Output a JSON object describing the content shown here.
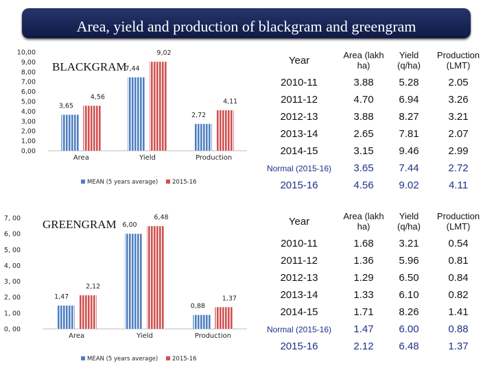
{
  "title": "Area, yield and production of blackgram and greengram",
  "legend": {
    "mean": "MEAN (5 years average)",
    "current": "2015-16"
  },
  "colors": {
    "mean": "#4f7fc0",
    "current": "#d0504f"
  },
  "chart_data": [
    {
      "type": "bar",
      "title": "BLACKGRAM",
      "categories": [
        "Area",
        "Yield",
        "Production"
      ],
      "series": [
        {
          "name": "MEAN (5 years average)",
          "values": [
            3.65,
            7.44,
            2.72
          ],
          "labels": [
            "3,65",
            "7,44",
            "2,72"
          ]
        },
        {
          "name": "2015-16",
          "values": [
            4.56,
            9.02,
            4.11
          ],
          "labels": [
            "4,56",
            "9,02",
            "4,11"
          ]
        }
      ],
      "ylim": [
        0,
        10
      ],
      "yticks": [
        "0,00",
        "1,00",
        "2,00",
        "3,00",
        "4,00",
        "5,00",
        "6,00",
        "7,00",
        "8,00",
        "9,00",
        "10,00"
      ],
      "xlabel": "",
      "ylabel": ""
    },
    {
      "type": "bar",
      "title": "GREENGRAM",
      "categories": [
        "Area",
        "Yield",
        "Production"
      ],
      "series": [
        {
          "name": "MEAN (5 years average)",
          "values": [
            1.47,
            6.0,
            0.88
          ],
          "labels": [
            "1,47",
            "6,00",
            "0,88"
          ]
        },
        {
          "name": "2015-16",
          "values": [
            2.12,
            6.48,
            1.37
          ],
          "labels": [
            "2,12",
            "6,48",
            "1,37"
          ]
        }
      ],
      "ylim": [
        0,
        7
      ],
      "yticks": [
        "0, 00",
        "1, 00",
        "2, 00",
        "3, 00",
        "4, 00",
        "5, 00",
        "6, 00",
        "7, 00"
      ],
      "xlabel": "",
      "ylabel": ""
    }
  ],
  "tables": [
    {
      "headers": [
        "Year",
        "Area (lakh ha)",
        "Yield (q/ha)",
        "Production (LMT)"
      ],
      "rows": [
        [
          "2010-11",
          "3.88",
          "5.28",
          "2.05"
        ],
        [
          "2011-12",
          "4.70",
          "6.94",
          "3.26"
        ],
        [
          "2012-13",
          "3.88",
          "8.27",
          "3.21"
        ],
        [
          "2013-14",
          "2.65",
          "7.81",
          "2.07"
        ],
        [
          "2014-15",
          "3.15",
          "9.46",
          "2.99"
        ],
        [
          "Normal (2015-16)",
          "3.65",
          "7.44",
          "2.72"
        ],
        [
          "2015-16",
          "4.56",
          "9.02",
          "4.11"
        ]
      ]
    },
    {
      "headers": [
        "Year",
        "Area (lakh ha)",
        "Yield (q/ha)",
        "Production (LMT)"
      ],
      "rows": [
        [
          "2010-11",
          "1.68",
          "3.21",
          "0.54"
        ],
        [
          "2011-12",
          "1.36",
          "5.96",
          "0.81"
        ],
        [
          "2012-13",
          "1.29",
          "6.50",
          "0.84"
        ],
        [
          "2013-14",
          "1.33",
          "6.10",
          "0.82"
        ],
        [
          "2014-15",
          "1.71",
          "8.26",
          "1.41"
        ],
        [
          "Normal (2015-16)",
          "1.47",
          "6.00",
          "0.88"
        ],
        [
          "2015-16",
          "2.12",
          "6.48",
          "1.37"
        ]
      ]
    }
  ]
}
